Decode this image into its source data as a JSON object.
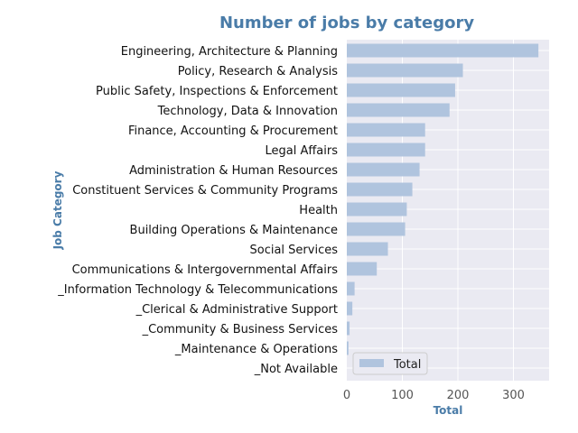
{
  "chart_data": {
    "type": "bar",
    "orientation": "horizontal",
    "title": "Number of jobs by category",
    "xlabel": "Total",
    "ylabel": "Job Category",
    "xlim": [
      0,
      360
    ],
    "xticks": [
      0,
      100,
      200,
      300
    ],
    "grid": true,
    "legend_position": "lower-left",
    "colors": {
      "bar": "#b0c4de",
      "background": "#eaeaf2",
      "title": "#4a7ca8",
      "grid": "#ffffff"
    },
    "categories": [
      "Engineering, Architecture & Planning",
      "Policy, Research & Analysis",
      "Public Safety, Inspections & Enforcement",
      "Technology, Data & Innovation",
      "Finance, Accounting & Procurement",
      "Legal Affairs",
      "Administration & Human Resources",
      "Constituent Services & Community Programs",
      "Health",
      "Building Operations & Maintenance",
      "Social Services",
      "Communications & Intergovernmental Affairs",
      "_Information Technology & Telecommunications",
      "_Clerical & Administrative Support",
      "_Community & Business Services",
      "_Maintenance & Operations",
      "_Not Available"
    ],
    "series": [
      {
        "name": "Total",
        "values": [
          345,
          209,
          195,
          185,
          141,
          141,
          131,
          118,
          108,
          105,
          74,
          54,
          14,
          10,
          5,
          3,
          0
        ]
      }
    ]
  }
}
